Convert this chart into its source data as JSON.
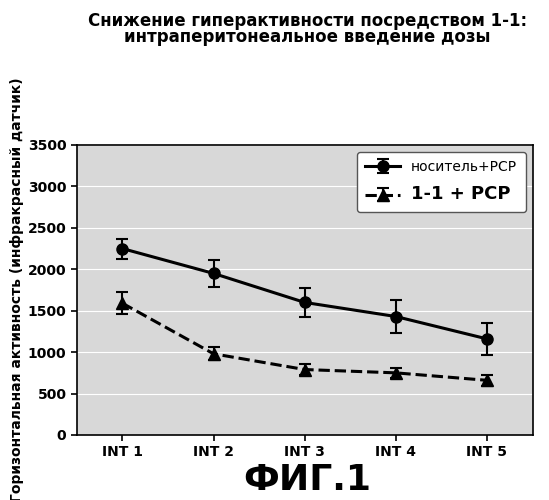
{
  "title_line1": "Снижение гиперактивности посредством 1-1:",
  "title_line2": "интраперитонеальное введение дозы",
  "xlabel_bottom": "ФИГ.1",
  "ylabel": "Горизонтальная активность (инфракрасный датчик)",
  "xtick_labels": [
    "INT 1",
    "INT 2",
    "INT 3",
    "INT 4",
    "INT 5"
  ],
  "ylim": [
    0,
    3500
  ],
  "yticks": [
    0,
    500,
    1000,
    1500,
    2000,
    2500,
    3000,
    3500
  ],
  "series": [
    {
      "label": "носитель+РСР",
      "y": [
        2250,
        1950,
        1600,
        1430,
        1160
      ],
      "yerr": [
        120,
        160,
        170,
        200,
        190
      ],
      "color": "#000000",
      "linestyle": "-",
      "marker": "o",
      "linewidth": 2.2,
      "markersize": 8
    },
    {
      "label": "1-1 + РСР",
      "y": [
        1590,
        980,
        790,
        750,
        660
      ],
      "yerr": [
        130,
        80,
        70,
        60,
        70
      ],
      "color": "#000000",
      "linestyle": "--",
      "marker": "^",
      "linewidth": 2.2,
      "markersize": 8
    }
  ],
  "legend_fontsize_1": 10,
  "legend_fontsize_2": 13,
  "title_fontsize": 12,
  "axis_label_fontsize": 10,
  "tick_fontsize": 10,
  "fig_label_fontsize": 26,
  "background_color": "#ffffff",
  "plot_bg_color": "#d8d8d8"
}
